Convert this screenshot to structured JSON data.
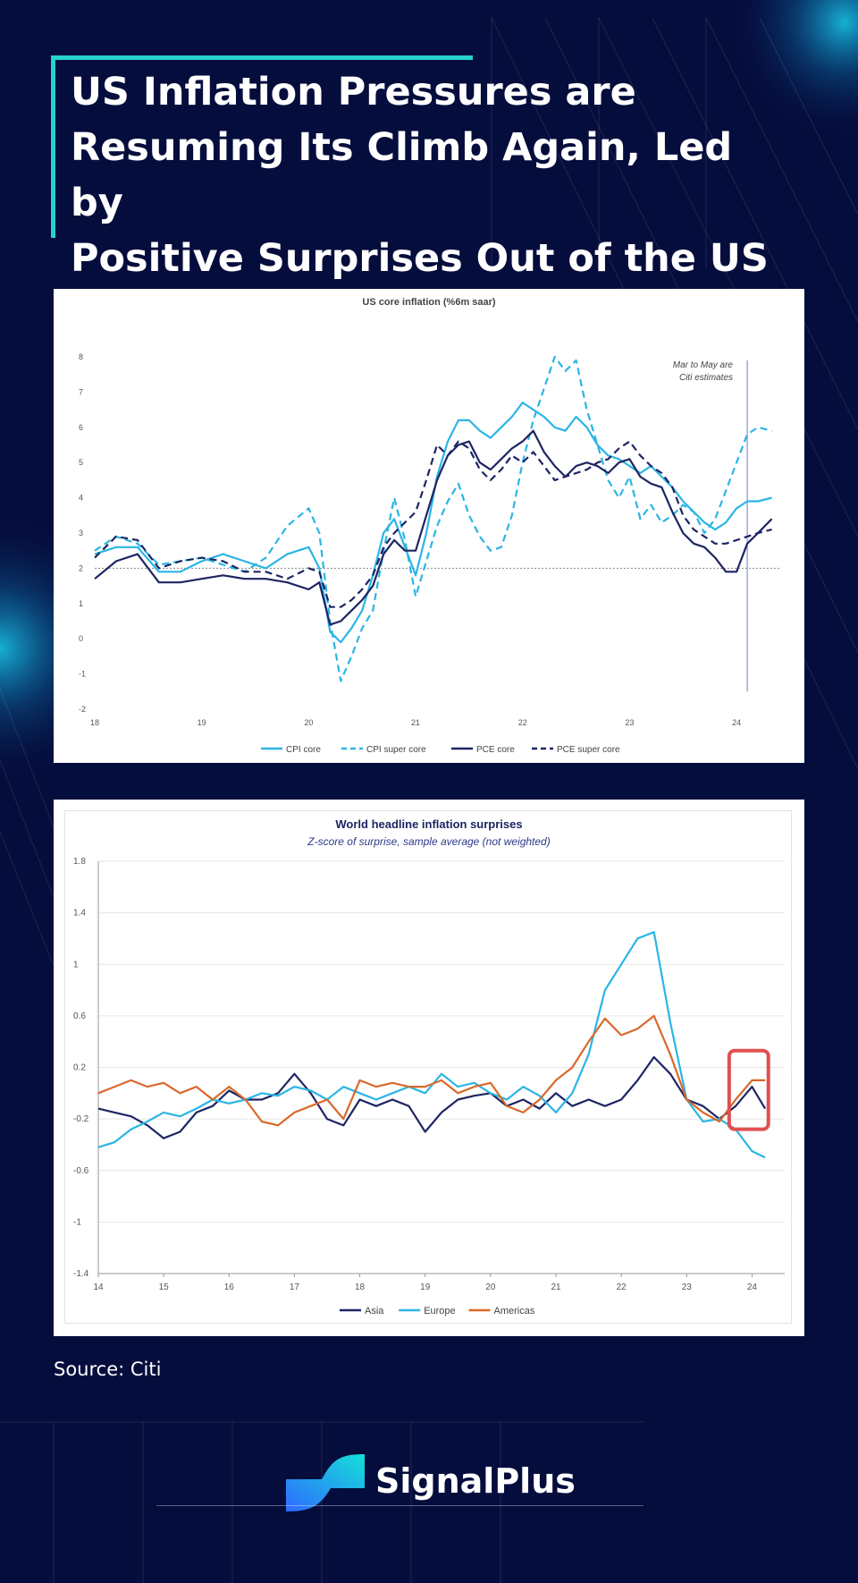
{
  "page": {
    "title": "US Inflation Pressures are Resuming Its Climb Again, Led by Positive Surprises Out of the US",
    "title_lines": [
      "US Inflation Pressures are",
      "Resuming Its Climb Again, Led by",
      "Positive Surprises Out of the US"
    ],
    "source": "Source: Citi",
    "brand": "SignalPlus",
    "colors": {
      "background": "#050d3d",
      "accent": "#25d2cc",
      "brand_gradient": [
        "#14c8e8",
        "#2f6bff"
      ]
    }
  },
  "chart_data": [
    {
      "type": "line",
      "title": "US core inflation (%6m saar)",
      "annotation": "Mar to May are\nCiti estimates",
      "xlabel": "",
      "ylabel": "",
      "xlim": [
        2018,
        2024.4
      ],
      "ylim": [
        -2,
        8
      ],
      "xticks": [
        "18",
        "19",
        "20",
        "21",
        "22",
        "23",
        "24"
      ],
      "yticks": [
        "-2",
        "-1",
        "0",
        "1",
        "2",
        "3",
        "4",
        "5",
        "6",
        "7",
        "8"
      ],
      "reference_line": 2,
      "estimate_marker": 2024.1,
      "x": [
        2018.0,
        2018.2,
        2018.4,
        2018.6,
        2018.8,
        2019.0,
        2019.2,
        2019.4,
        2019.6,
        2019.8,
        2020.0,
        2020.1,
        2020.2,
        2020.3,
        2020.4,
        2020.5,
        2020.6,
        2020.7,
        2020.8,
        2020.9,
        2021.0,
        2021.1,
        2021.2,
        2021.3,
        2021.4,
        2021.5,
        2021.6,
        2021.7,
        2021.8,
        2021.9,
        2022.0,
        2022.1,
        2022.2,
        2022.3,
        2022.4,
        2022.5,
        2022.6,
        2022.7,
        2022.8,
        2022.9,
        2023.0,
        2023.1,
        2023.2,
        2023.3,
        2023.4,
        2023.5,
        2023.6,
        2023.7,
        2023.8,
        2023.9,
        2024.0,
        2024.1,
        2024.2,
        2024.33
      ],
      "series": [
        {
          "name": "CPI core",
          "color": "#2bb5e5",
          "dash": "",
          "values": [
            2.4,
            2.6,
            2.6,
            1.9,
            1.9,
            2.2,
            2.4,
            2.2,
            2.0,
            2.4,
            2.6,
            2.0,
            0.2,
            -0.1,
            0.3,
            0.8,
            1.8,
            3.0,
            3.4,
            2.6,
            1.8,
            3.0,
            4.6,
            5.6,
            6.2,
            6.2,
            5.9,
            5.7,
            6.0,
            6.3,
            6.7,
            6.5,
            6.3,
            6.0,
            5.9,
            6.3,
            6.0,
            5.5,
            5.2,
            5.1,
            4.9,
            4.7,
            4.9,
            4.6,
            4.3,
            3.9,
            3.6,
            3.3,
            3.1,
            3.3,
            3.7,
            3.9,
            3.9,
            4.0
          ]
        },
        {
          "name": "CPI super core",
          "color": "#2bb5e5",
          "dash": "8,5",
          "values": [
            2.5,
            2.9,
            2.7,
            2.1,
            2.2,
            2.3,
            2.1,
            1.9,
            2.3,
            3.2,
            3.7,
            3.0,
            0.5,
            -1.2,
            -0.5,
            0.3,
            0.8,
            2.5,
            4.0,
            2.8,
            1.2,
            2.2,
            3.2,
            3.9,
            4.4,
            3.5,
            2.9,
            2.5,
            2.6,
            3.5,
            5.0,
            6.2,
            7.1,
            8.0,
            7.6,
            7.9,
            6.5,
            5.5,
            4.5,
            4.0,
            4.6,
            3.4,
            3.8,
            3.3,
            3.5,
            3.8,
            3.6,
            3.0,
            3.4,
            4.2,
            5.0,
            5.8,
            6.0,
            5.9
          ]
        },
        {
          "name": "PCE core",
          "color": "#1d2563",
          "dash": "",
          "values": [
            1.7,
            2.2,
            2.4,
            1.6,
            1.6,
            1.7,
            1.8,
            1.7,
            1.7,
            1.6,
            1.4,
            1.6,
            0.4,
            0.5,
            0.8,
            1.1,
            1.5,
            2.4,
            2.8,
            2.5,
            2.5,
            3.5,
            4.5,
            5.2,
            5.5,
            5.6,
            5.0,
            4.8,
            5.1,
            5.4,
            5.6,
            5.9,
            5.3,
            4.9,
            4.6,
            4.9,
            5.0,
            4.9,
            4.7,
            5.0,
            5.1,
            4.6,
            4.4,
            4.3,
            3.6,
            3.0,
            2.7,
            2.6,
            2.3,
            1.9,
            1.9,
            2.7,
            3.0,
            3.4
          ]
        },
        {
          "name": "PCE super core",
          "color": "#1d2563",
          "dash": "8,5",
          "values": [
            2.3,
            2.9,
            2.8,
            2.0,
            2.2,
            2.3,
            2.2,
            1.9,
            1.9,
            1.7,
            2.0,
            1.9,
            0.9,
            0.9,
            1.1,
            1.4,
            1.8,
            2.6,
            3.0,
            3.3,
            3.6,
            4.5,
            5.5,
            5.2,
            5.6,
            5.4,
            4.8,
            4.5,
            4.8,
            5.2,
            5.0,
            5.3,
            4.9,
            4.5,
            4.6,
            4.7,
            4.8,
            5.0,
            5.1,
            5.4,
            5.6,
            5.2,
            4.9,
            4.7,
            4.3,
            3.5,
            3.1,
            2.9,
            2.7,
            2.7,
            2.8,
            2.9,
            3.0,
            3.1
          ]
        }
      ],
      "legend": [
        "CPI core",
        "CPI super core",
        "PCE core",
        "PCE super core"
      ],
      "legend_position": "bottom"
    },
    {
      "type": "line",
      "title": "World headline inflation surprises",
      "subtitle": "Z-score of surprise, sample average (not weighted)",
      "xlabel": "",
      "ylabel": "",
      "xlim": [
        2014,
        2024.5
      ],
      "ylim": [
        -1.4,
        1.8
      ],
      "xticks": [
        "14",
        "15",
        "16",
        "17",
        "18",
        "19",
        "20",
        "21",
        "22",
        "23",
        "24"
      ],
      "yticks": [
        "1.8",
        "1.4",
        "1",
        "0.6",
        "0.2",
        "-0.2",
        "-0.6",
        "-1",
        "-1.4"
      ],
      "highlight": {
        "x_range": [
          2023.65,
          2024.25
        ],
        "y_range": [
          -0.28,
          0.33
        ],
        "color": "#e05050"
      },
      "x": [
        2014.0,
        2014.25,
        2014.5,
        2014.75,
        2015.0,
        2015.25,
        2015.5,
        2015.75,
        2016.0,
        2016.25,
        2016.5,
        2016.75,
        2017.0,
        2017.25,
        2017.5,
        2017.75,
        2018.0,
        2018.25,
        2018.5,
        2018.75,
        2019.0,
        2019.25,
        2019.5,
        2019.75,
        2020.0,
        2020.25,
        2020.5,
        2020.75,
        2021.0,
        2021.25,
        2021.5,
        2021.75,
        2022.0,
        2022.25,
        2022.5,
        2022.75,
        2023.0,
        2023.25,
        2023.5,
        2023.75,
        2024.0,
        2024.2
      ],
      "series": [
        {
          "name": "Asia",
          "color": "#1d2563",
          "values": [
            -0.12,
            -0.15,
            -0.18,
            -0.25,
            -0.35,
            -0.3,
            -0.15,
            -0.1,
            0.02,
            -0.05,
            -0.05,
            0.0,
            0.15,
            0.0,
            -0.2,
            -0.25,
            -0.05,
            -0.1,
            -0.05,
            -0.1,
            -0.3,
            -0.15,
            -0.05,
            -0.02,
            0.0,
            -0.1,
            -0.05,
            -0.12,
            0.0,
            -0.1,
            -0.05,
            -0.1,
            -0.05,
            0.1,
            0.28,
            0.15,
            -0.05,
            -0.1,
            -0.2,
            -0.1,
            0.05,
            -0.12
          ]
        },
        {
          "name": "Europe",
          "color": "#2bb5e5",
          "values": [
            -0.42,
            -0.38,
            -0.28,
            -0.22,
            -0.15,
            -0.18,
            -0.12,
            -0.05,
            -0.08,
            -0.05,
            0.0,
            -0.02,
            0.05,
            0.02,
            -0.05,
            0.05,
            0.0,
            -0.05,
            0.0,
            0.05,
            0.0,
            0.15,
            0.05,
            0.08,
            0.0,
            -0.05,
            0.05,
            -0.02,
            -0.15,
            0.0,
            0.3,
            0.8,
            1.0,
            1.2,
            1.25,
            0.55,
            -0.05,
            -0.22,
            -0.2,
            -0.28,
            -0.45,
            -0.5
          ]
        },
        {
          "name": "Americas",
          "color": "#d9692b",
          "values": [
            0.0,
            0.05,
            0.1,
            0.05,
            0.08,
            0.0,
            0.05,
            -0.05,
            0.05,
            -0.05,
            -0.22,
            -0.25,
            -0.15,
            -0.1,
            -0.05,
            -0.2,
            0.1,
            0.05,
            0.08,
            0.05,
            0.05,
            0.1,
            0.0,
            0.05,
            0.08,
            -0.1,
            -0.15,
            -0.05,
            0.1,
            0.2,
            0.4,
            0.58,
            0.45,
            0.5,
            0.6,
            0.3,
            -0.05,
            -0.15,
            -0.22,
            -0.05,
            0.1,
            0.1
          ]
        }
      ],
      "legend": [
        "Asia",
        "Europe",
        "Americas"
      ],
      "legend_position": "bottom"
    }
  ]
}
